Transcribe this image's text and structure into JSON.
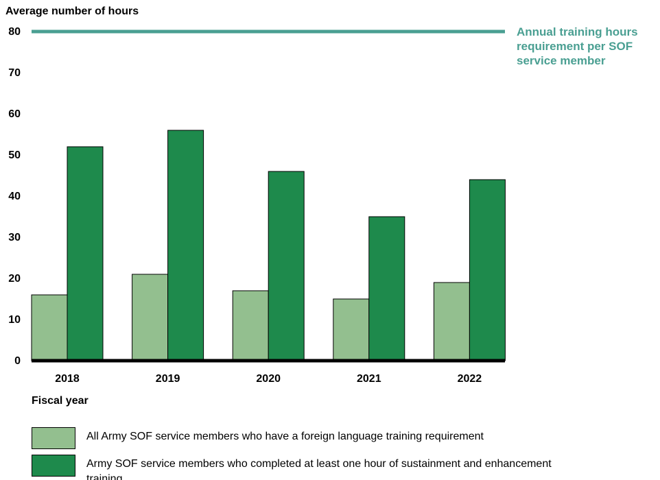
{
  "chart_data": {
    "type": "bar",
    "y_axis_label": "Average number of hours",
    "x_axis_label": "Fiscal year",
    "categories": [
      "2018",
      "2019",
      "2020",
      "2021",
      "2022"
    ],
    "series": [
      {
        "name": "All Army SOF service members who have a foreign language training requirement",
        "color": "#93bf8f",
        "values": [
          16,
          21,
          17,
          15,
          19
        ]
      },
      {
        "name": "Army SOF service members who completed at least one hour of sustainment and enhancement training",
        "color": "#1e8a4c",
        "values": [
          52,
          56,
          46,
          35,
          44
        ]
      }
    ],
    "reference_line": {
      "value": 80,
      "label": "Annual training hours requirement per SOF service member",
      "color": "#4a9f92"
    },
    "ylim": [
      0,
      80
    ],
    "yticks": [
      0,
      10,
      20,
      30,
      40,
      50,
      60,
      70,
      80
    ],
    "grid": false
  }
}
